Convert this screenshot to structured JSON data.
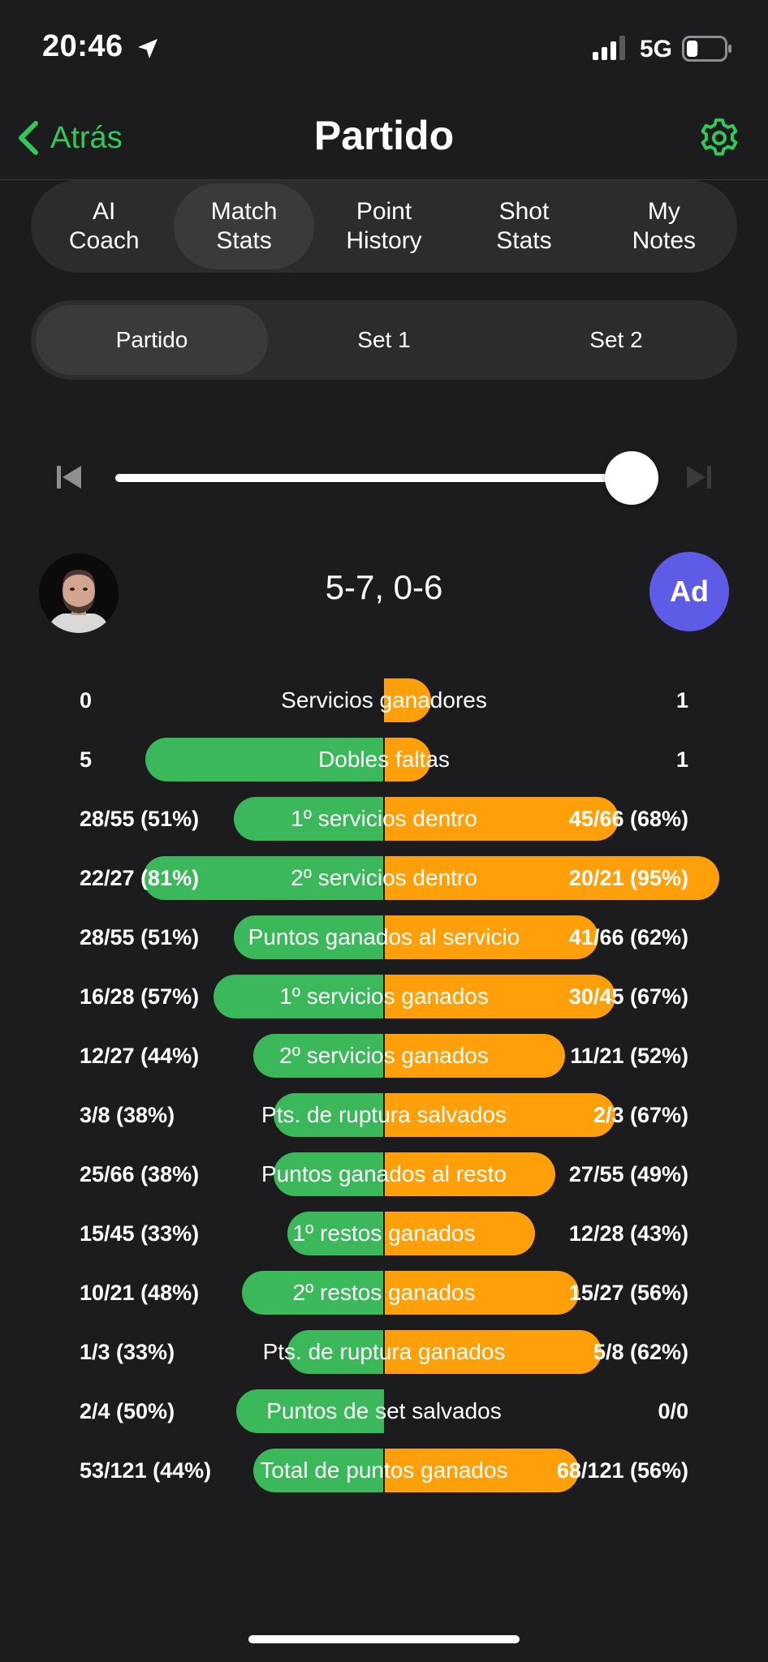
{
  "status_bar": {
    "time": "20:46",
    "network": "5G",
    "battery_level": 0.3
  },
  "nav": {
    "back_label": "Atrás",
    "title": "Partido"
  },
  "tabs": [
    {
      "label": "AI\nCoach",
      "active": false
    },
    {
      "label": "Match\nStats",
      "active": true
    },
    {
      "label": "Point\nHistory",
      "active": false
    },
    {
      "label": "Shot\nStats",
      "active": false
    },
    {
      "label": "My\nNotes",
      "active": false
    }
  ],
  "segments": [
    {
      "label": "Partido",
      "active": true
    },
    {
      "label": "Set 1",
      "active": false
    },
    {
      "label": "Set 2",
      "active": false
    }
  ],
  "slider": {
    "value": 1.0
  },
  "match": {
    "score": "5-7, 0-6",
    "opponent_initials": "Ad"
  },
  "colors": {
    "player": "#3ab85a",
    "opponent": "#ff9f0a",
    "accent": "#34c759",
    "opponent_avatar": "#5e5ce6"
  },
  "stats": [
    {
      "label": "Servicios ganadores",
      "left": "0",
      "right": "1",
      "left_ratio": 0.0,
      "right_ratio": 0.14
    },
    {
      "label": "Dobles faltas",
      "left": "5",
      "right": "1",
      "left_ratio": 0.84,
      "right_ratio": 0.14
    },
    {
      "label": "1º servicios dentro",
      "left": "28/55 (51%)",
      "right": "45/66 (68%)",
      "left_ratio": 0.53,
      "right_ratio": 0.7
    },
    {
      "label": "2º servicios dentro",
      "left": "22/27 (81%)",
      "right": "20/21 (95%)",
      "left_ratio": 0.85,
      "right_ratio": 1.0
    },
    {
      "label": "Puntos ganados al servicio",
      "left": "28/55 (51%)",
      "right": "41/66 (62%)",
      "left_ratio": 0.53,
      "right_ratio": 0.64
    },
    {
      "label": "1º servicios ganados",
      "left": "16/28 (57%)",
      "right": "30/45 (67%)",
      "left_ratio": 0.6,
      "right_ratio": 0.69
    },
    {
      "label": "2º servicios ganados",
      "left": "12/27 (44%)",
      "right": "11/21 (52%)",
      "left_ratio": 0.46,
      "right_ratio": 0.54
    },
    {
      "label": "Pts. de ruptura salvados",
      "left": "3/8 (38%)",
      "right": "2/3 (67%)",
      "left_ratio": 0.39,
      "right_ratio": 0.69
    },
    {
      "label": "Puntos ganados al resto",
      "left": "25/66 (38%)",
      "right": "27/55 (49%)",
      "left_ratio": 0.39,
      "right_ratio": 0.51
    },
    {
      "label": "1º restos ganados",
      "left": "15/45 (33%)",
      "right": "12/28 (43%)",
      "left_ratio": 0.34,
      "right_ratio": 0.45
    },
    {
      "label": "2º restos ganados",
      "left": "10/21 (48%)",
      "right": "15/27 (56%)",
      "left_ratio": 0.5,
      "right_ratio": 0.58
    },
    {
      "label": "Pts. de ruptura ganados",
      "left": "1/3 (33%)",
      "right": "5/8 (62%)",
      "left_ratio": 0.34,
      "right_ratio": 0.65
    },
    {
      "label": "Puntos de set salvados",
      "left": "2/4 (50%)",
      "right": "0/0",
      "left_ratio": 0.52,
      "right_ratio": 0.0
    },
    {
      "label": "Total de puntos ganados",
      "left": "53/121 (44%)",
      "right": "68/121 (56%)",
      "left_ratio": 0.46,
      "right_ratio": 0.58
    }
  ]
}
